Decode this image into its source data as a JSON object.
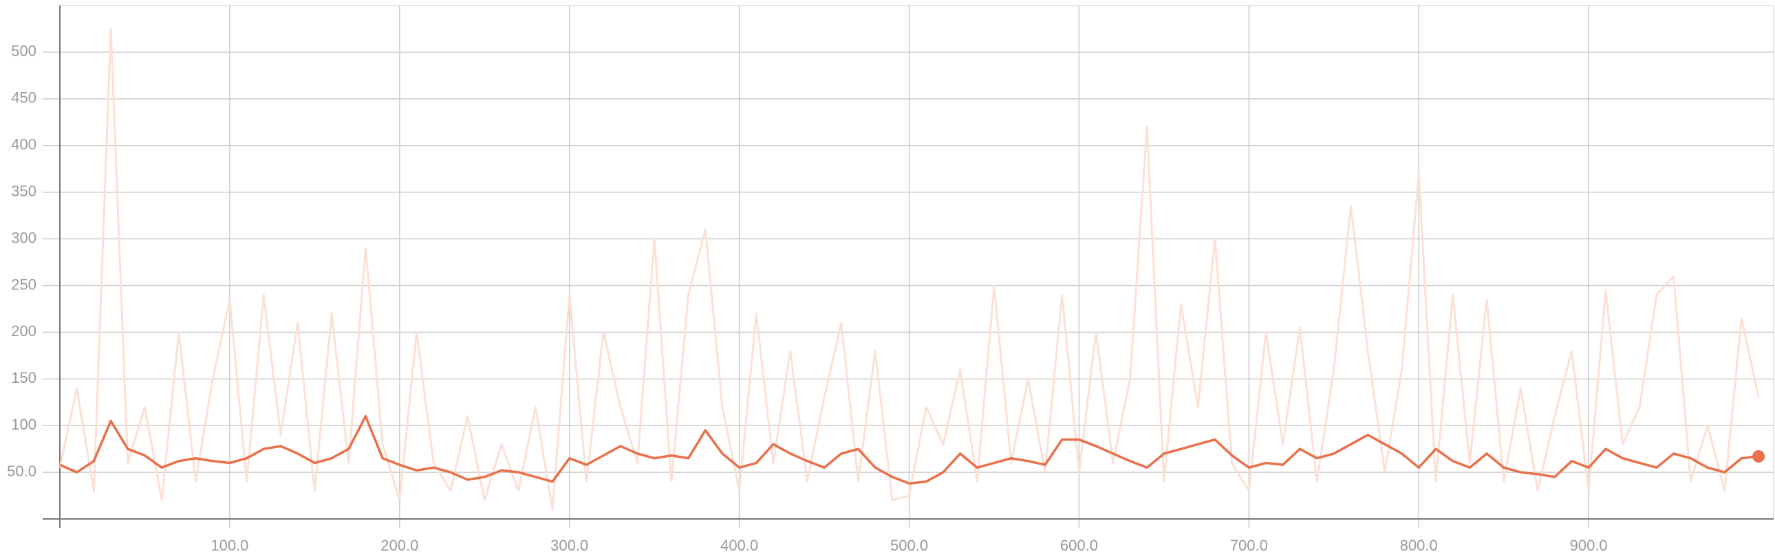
{
  "chart_data": {
    "type": "line",
    "x": [
      0,
      10,
      20,
      30,
      40,
      50,
      60,
      70,
      80,
      90,
      100,
      110,
      120,
      130,
      140,
      150,
      160,
      170,
      180,
      190,
      200,
      210,
      220,
      230,
      240,
      250,
      260,
      270,
      280,
      290,
      300,
      310,
      320,
      330,
      340,
      350,
      360,
      370,
      380,
      390,
      400,
      410,
      420,
      430,
      440,
      450,
      460,
      470,
      480,
      490,
      500,
      510,
      520,
      530,
      540,
      550,
      560,
      570,
      580,
      590,
      600,
      610,
      620,
      630,
      640,
      650,
      660,
      670,
      680,
      690,
      700,
      710,
      720,
      730,
      740,
      750,
      760,
      770,
      780,
      790,
      800,
      810,
      820,
      830,
      840,
      850,
      860,
      870,
      880,
      890,
      900,
      910,
      920,
      930,
      940,
      950,
      960,
      970,
      980,
      990,
      1000
    ],
    "series": [
      {
        "color": "#fbe0d6",
        "values": [
          55,
          140,
          30,
          525,
          60,
          120,
          20,
          200,
          40,
          150,
          235,
          40,
          240,
          90,
          210,
          30,
          220,
          60,
          290,
          80,
          20,
          200,
          60,
          30,
          110,
          20,
          80,
          30,
          120,
          10,
          240,
          40,
          200,
          120,
          60,
          300,
          40,
          240,
          310,
          120,
          30,
          220,
          60,
          180,
          40,
          130,
          210,
          40,
          180,
          20,
          25,
          120,
          80,
          160,
          40,
          250,
          60,
          150,
          50,
          240,
          50,
          200,
          60,
          150,
          420,
          40,
          230,
          120,
          300,
          60,
          30,
          200,
          80,
          205,
          40,
          160,
          335,
          180,
          50,
          160,
          370,
          40,
          240,
          60,
          235,
          40,
          140,
          30,
          110,
          180,
          30,
          245,
          80,
          120,
          240,
          260,
          40,
          100,
          30,
          215,
          130
        ]
      },
      {
        "color": "#e8704a",
        "values": [
          58,
          50,
          62,
          105,
          75,
          68,
          55,
          62,
          65,
          62,
          60,
          65,
          75,
          78,
          70,
          60,
          65,
          75,
          110,
          65,
          58,
          52,
          55,
          50,
          42,
          45,
          52,
          50,
          45,
          40,
          65,
          58,
          68,
          78,
          70,
          65,
          68,
          65,
          95,
          70,
          55,
          60,
          80,
          70,
          62,
          55,
          70,
          75,
          55,
          45,
          38,
          40,
          50,
          70,
          55,
          60,
          65,
          62,
          58,
          85,
          85,
          78,
          70,
          62,
          55,
          70,
          75,
          80,
          85,
          68,
          55,
          60,
          58,
          75,
          65,
          70,
          80,
          90,
          80,
          70,
          55,
          75,
          62,
          55,
          70,
          55,
          50,
          48,
          45,
          62,
          55,
          75,
          65,
          60,
          55,
          70,
          65,
          55,
          50,
          65,
          67
        ]
      }
    ],
    "xlim": [
      0,
      1002
    ],
    "ylim": [
      0,
      550
    ],
    "xticks": [
      {
        "value": 100,
        "label": "100.0"
      },
      {
        "value": 200,
        "label": "200.0"
      },
      {
        "value": 300,
        "label": "300.0"
      },
      {
        "value": 400,
        "label": "400.0"
      },
      {
        "value": 500,
        "label": "500.0"
      },
      {
        "value": 600,
        "label": "600.0"
      },
      {
        "value": 700,
        "label": "700.0"
      },
      {
        "value": 800,
        "label": "800.0"
      },
      {
        "value": 900,
        "label": "900.0"
      }
    ],
    "yticks": [
      {
        "value": 50,
        "label": "50.0"
      },
      100,
      150,
      200,
      250,
      300,
      350,
      400,
      450,
      500
    ],
    "grid": true
  }
}
